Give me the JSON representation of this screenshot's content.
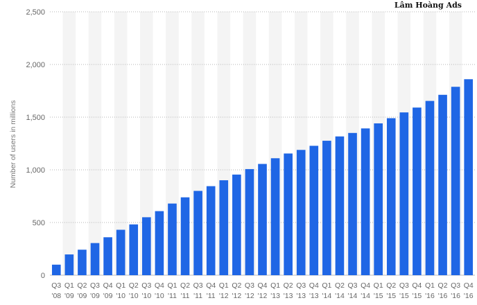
{
  "watermark": "Lâm Hoàng Ads",
  "chart_data": {
    "type": "bar",
    "title": "",
    "xlabel": "",
    "ylabel": "Number of users in millions",
    "ylim": [
      0,
      2500
    ],
    "yticks": [
      0,
      500,
      1000,
      1500,
      2000,
      2500
    ],
    "ytick_labels": [
      "0",
      "500",
      "1,000",
      "1,500",
      "2,000",
      "2,500"
    ],
    "grid": true,
    "bar_color": "#1f66e5",
    "band_color": "#f4f4f4",
    "categories": [
      [
        "Q3",
        "'08"
      ],
      [
        "Q1",
        "'09"
      ],
      [
        "Q2",
        "'09"
      ],
      [
        "Q3",
        "'09"
      ],
      [
        "Q4",
        "'09"
      ],
      [
        "Q1",
        "'10"
      ],
      [
        "Q2",
        "'10"
      ],
      [
        "Q3",
        "'10"
      ],
      [
        "Q4",
        "'10"
      ],
      [
        "Q1",
        "'11"
      ],
      [
        "Q2",
        "'11"
      ],
      [
        "Q3",
        "'11"
      ],
      [
        "Q4",
        "'11"
      ],
      [
        "Q1",
        "'12"
      ],
      [
        "Q2",
        "'12"
      ],
      [
        "Q3",
        "'12"
      ],
      [
        "Q4",
        "'12"
      ],
      [
        "Q1",
        "'13"
      ],
      [
        "Q2",
        "'13"
      ],
      [
        "Q3",
        "'13"
      ],
      [
        "Q4",
        "'13"
      ],
      [
        "Q1",
        "'14"
      ],
      [
        "Q2",
        "'14"
      ],
      [
        "Q3",
        "'14"
      ],
      [
        "Q4",
        "'14"
      ],
      [
        "Q1",
        "'15"
      ],
      [
        "Q2",
        "'15"
      ],
      [
        "Q3",
        "'15"
      ],
      [
        "Q4",
        "'15"
      ],
      [
        "Q1",
        "'16"
      ],
      [
        "Q2",
        "'16"
      ],
      [
        "Q3",
        "'16"
      ],
      [
        "Q4",
        "'16"
      ]
    ],
    "values": [
      100,
      197,
      242,
      305,
      360,
      431,
      482,
      550,
      608,
      680,
      739,
      800,
      845,
      901,
      955,
      1007,
      1056,
      1110,
      1155,
      1189,
      1228,
      1276,
      1317,
      1350,
      1393,
      1441,
      1490,
      1545,
      1591,
      1654,
      1712,
      1788,
      1860
    ]
  }
}
